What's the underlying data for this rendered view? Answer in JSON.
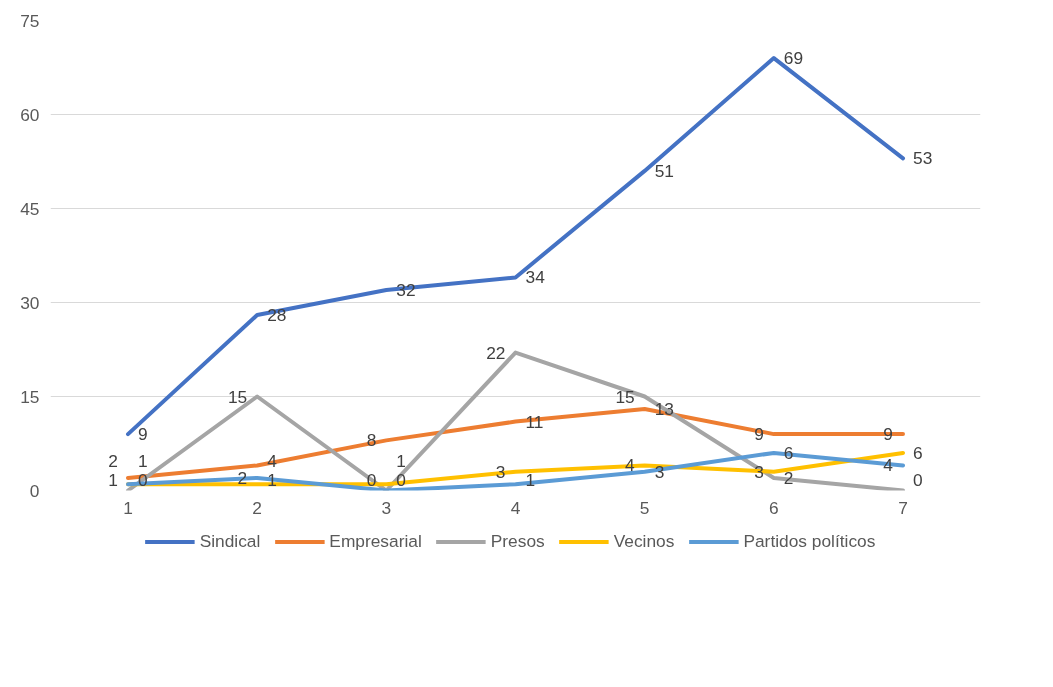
{
  "chart_data": {
    "type": "line",
    "categories": [
      "1",
      "2",
      "3",
      "4",
      "5",
      "6",
      "7"
    ],
    "series": [
      {
        "name": "Sindical",
        "color": "#4472c4",
        "values": [
          9,
          28,
          32,
          34,
          51,
          69,
          53
        ]
      },
      {
        "name": "Empresarial",
        "color": "#ed7d31",
        "values": [
          2,
          4,
          8,
          11,
          13,
          9,
          9
        ]
      },
      {
        "name": "Presos",
        "color": "#a5a5a5",
        "values": [
          0,
          15,
          0,
          22,
          15,
          2,
          0
        ]
      },
      {
        "name": "Vecinos",
        "color": "#ffc000",
        "values": [
          1,
          1,
          1,
          3,
          4,
          3,
          6
        ]
      },
      {
        "name": "Partidos políticos",
        "color": "#5b9bd5",
        "values": [
          1,
          2,
          0,
          1,
          3,
          6,
          4
        ]
      }
    ],
    "ylim": [
      0,
      75
    ],
    "yticks": [
      0,
      15,
      30,
      45,
      60,
      75
    ],
    "grid": "y",
    "legend": "bottom",
    "data_labels": true,
    "marker": "none",
    "line_style": "solid"
  }
}
